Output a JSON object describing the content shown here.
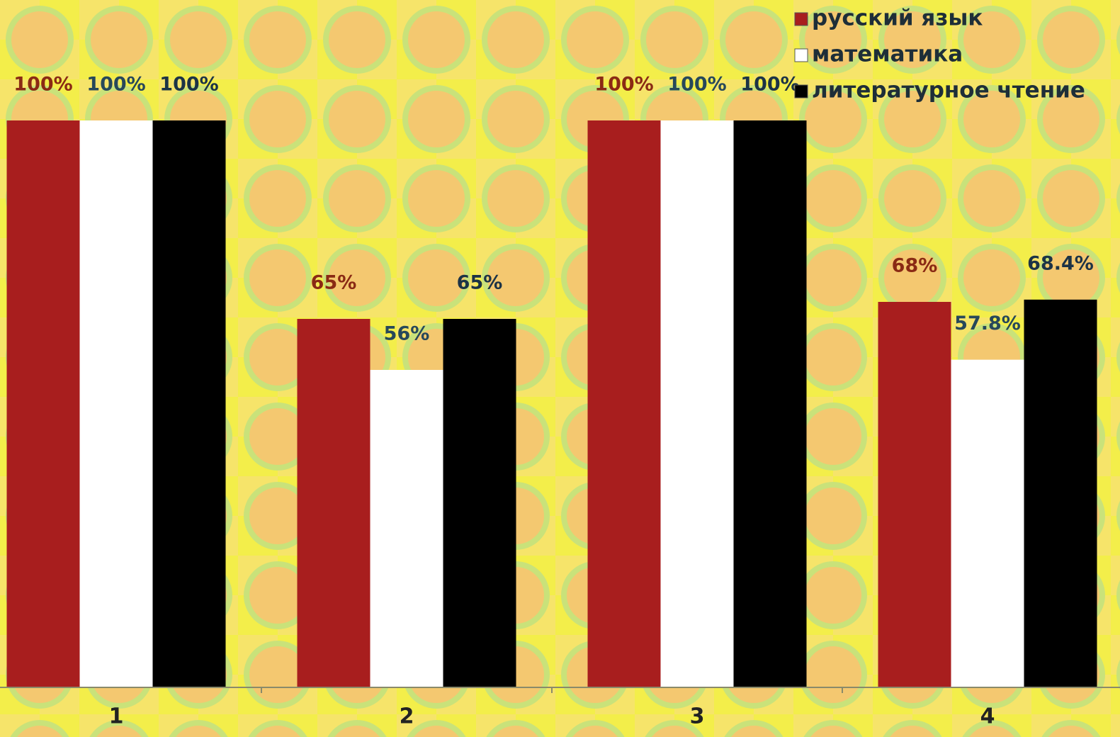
{
  "chart_data": {
    "type": "bar",
    "categories": [
      "1",
      "2",
      "3",
      "4"
    ],
    "series": [
      {
        "name": "русский язык",
        "color": "#a81e1e",
        "values": [
          100,
          65,
          100,
          68
        ],
        "value_labels": [
          "100%",
          "65%",
          "100%",
          "68%"
        ]
      },
      {
        "name": "математика",
        "color": "#ffffff",
        "values": [
          100,
          56,
          100,
          57.8
        ],
        "value_labels": [
          "100%",
          "56%",
          "100%",
          "57.8%"
        ]
      },
      {
        "name": "литературное чтение",
        "color": "#000000",
        "values": [
          100,
          65,
          100,
          68.4
        ],
        "value_labels": [
          "100%",
          "65%",
          "100%",
          "68.4%"
        ]
      }
    ],
    "ylim": [
      0,
      100
    ],
    "legend": "top-right"
  }
}
